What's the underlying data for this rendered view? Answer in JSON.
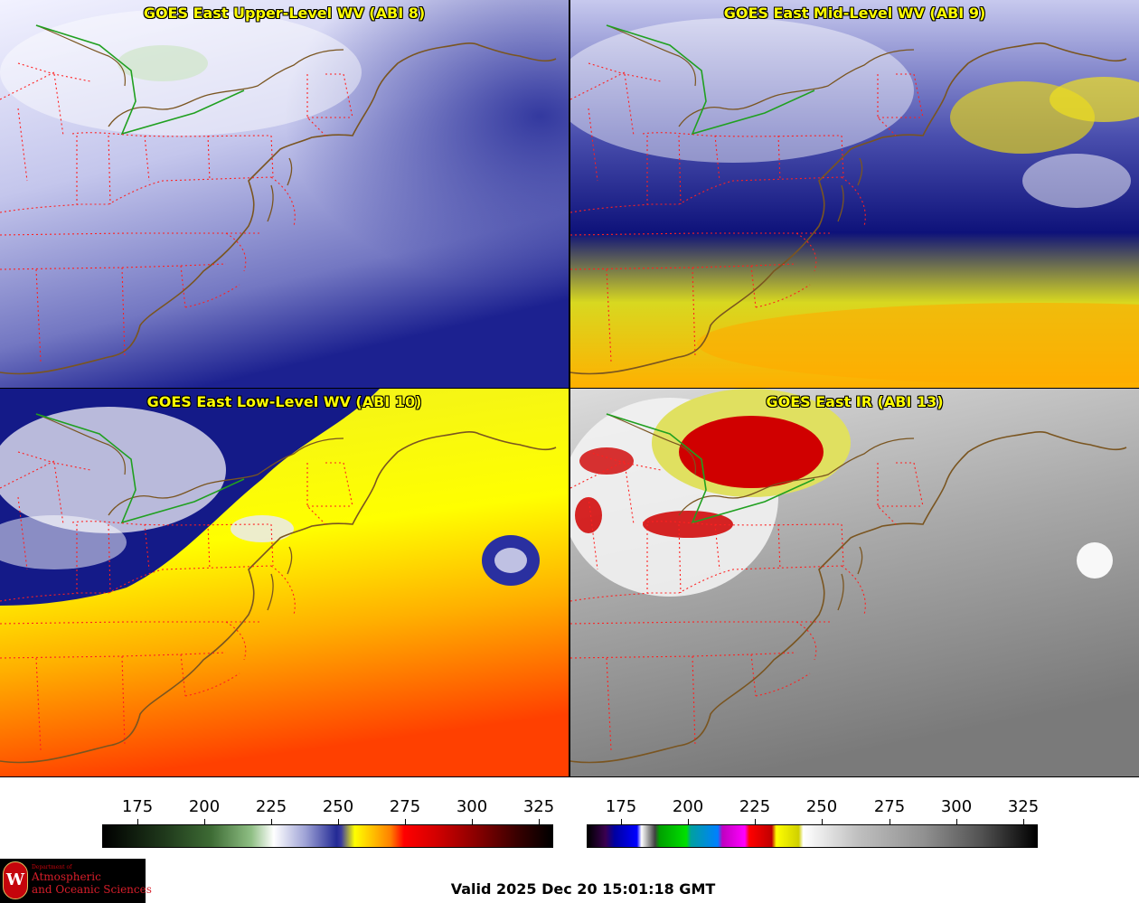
{
  "panels": [
    {
      "title": "GOES East Upper-Level WV (ABI 8)"
    },
    {
      "title": "GOES East Mid-Level WV (ABI 9)"
    },
    {
      "title": "GOES East Low-Level WV (ABI 10)"
    },
    {
      "title": "GOES East IR (ABI 13)"
    }
  ],
  "colorbars": [
    {
      "name": "water-vapor",
      "ticks": [
        "175",
        "200",
        "225",
        "250",
        "275",
        "300",
        "325"
      ]
    },
    {
      "name": "infrared",
      "ticks": [
        "175",
        "200",
        "225",
        "250",
        "275",
        "300",
        "325"
      ]
    }
  ],
  "valid_time": "Valid 2025 Dec 20 15:01:18 GMT",
  "logo": {
    "dept": "Department of",
    "line1": "Atmospheric",
    "line2": "and Oceanic Sciences",
    "seal": "W"
  },
  "colors": {
    "title_text": "#ffff00",
    "state_borders": "#ff2020",
    "coastline": "#7a5520",
    "intl_border": "#20a020"
  }
}
